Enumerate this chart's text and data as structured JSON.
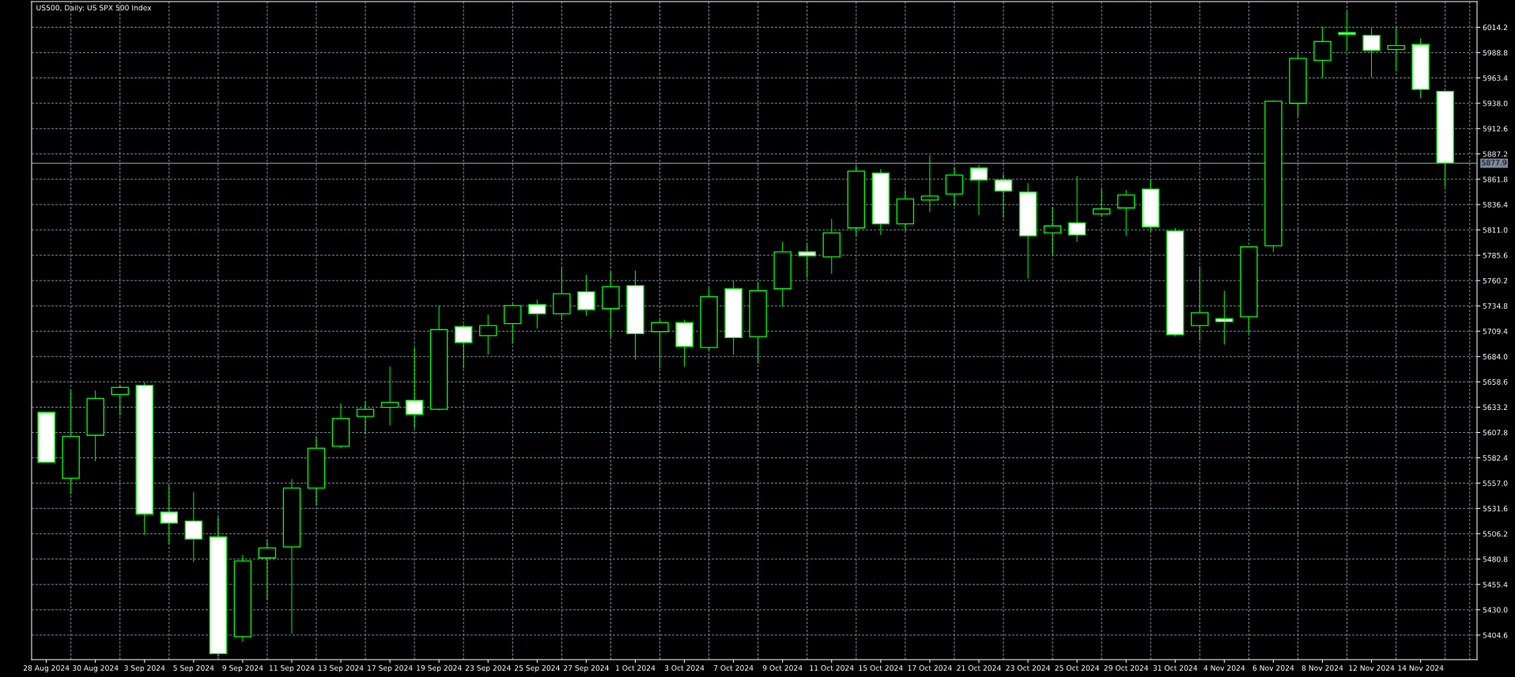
{
  "chart_data": {
    "type": "candlestick",
    "title": "US500, Daily: US SPX 500 Index",
    "categories": [
      "28 Aug 2024",
      null,
      "30 Aug 2024",
      null,
      "3 Sep 2024",
      null,
      "5 Sep 2024",
      null,
      "9 Sep 2024",
      null,
      "11 Sep 2024",
      null,
      "13 Sep 2024",
      null,
      "17 Sep 2024",
      null,
      "19 Sep 2024",
      null,
      "23 Sep 2024",
      null,
      "25 Sep 2024",
      null,
      "27 Sep 2024",
      null,
      "1 Oct 2024",
      null,
      "3 Oct 2024",
      null,
      "7 Oct 2024",
      null,
      "9 Oct 2024",
      null,
      "11 Oct 2024",
      null,
      "15 Oct 2024",
      null,
      "17 Oct 2024",
      null,
      "21 Oct 2024",
      null,
      "23 Oct 2024",
      null,
      "25 Oct 2024",
      null,
      "29 Oct 2024",
      null,
      "31 Oct 2024",
      null,
      "4 Nov 2024",
      null,
      "6 Nov 2024",
      null,
      "8 Nov 2024",
      null,
      "12 Nov 2024",
      null,
      "14 Nov 2024",
      null
    ],
    "ohlc": [
      [
        5628,
        5628,
        5578,
        5578
      ],
      [
        5562,
        5650,
        5546,
        5604
      ],
      [
        5605,
        5650,
        5579,
        5642
      ],
      [
        5646,
        5655,
        5625,
        5653
      ],
      [
        5655,
        5658,
        5505,
        5526
      ],
      [
        5528,
        5555,
        5496,
        5517
      ],
      [
        5519,
        5548,
        5478,
        5501
      ],
      [
        5503,
        5523,
        5383,
        5386
      ],
      [
        5403,
        5485,
        5398,
        5479
      ],
      [
        5482,
        5500,
        5440,
        5492
      ],
      [
        5493,
        5561,
        5406,
        5552
      ],
      [
        5552,
        5603,
        5535,
        5592
      ],
      [
        5594,
        5637,
        5592,
        5622
      ],
      [
        5624,
        5639,
        5606,
        5631
      ],
      [
        5633,
        5674,
        5615,
        5638
      ],
      [
        5640,
        5693,
        5612,
        5626
      ],
      [
        5631,
        5735,
        5630,
        5711
      ],
      [
        5714,
        5716,
        5672,
        5698
      ],
      [
        5705,
        5726,
        5686,
        5715
      ],
      [
        5717,
        5737,
        5697,
        5735
      ],
      [
        5736,
        5741,
        5712,
        5727
      ],
      [
        5727,
        5773,
        5721,
        5747
      ],
      [
        5749,
        5766,
        5725,
        5731
      ],
      [
        5732,
        5769,
        5703,
        5754
      ],
      [
        5755,
        5770,
        5681,
        5707
      ],
      [
        5709,
        5721,
        5672,
        5718
      ],
      [
        5718,
        5721,
        5674,
        5694
      ],
      [
        5693,
        5753,
        5690,
        5744
      ],
      [
        5752,
        5760,
        5686,
        5703
      ],
      [
        5704,
        5759,
        5677,
        5750
      ],
      [
        5752,
        5799,
        5734,
        5789
      ],
      [
        5789,
        5797,
        5763,
        5785
      ],
      [
        5784,
        5822,
        5767,
        5808
      ],
      [
        5813,
        5875,
        5805,
        5870
      ],
      [
        5868,
        5872,
        5806,
        5817
      ],
      [
        5817,
        5851,
        5810,
        5842
      ],
      [
        5841,
        5886,
        5829,
        5845
      ],
      [
        5847,
        5874,
        5835,
        5866
      ],
      [
        5873,
        5876,
        5826,
        5861
      ],
      [
        5861,
        5867,
        5823,
        5850
      ],
      [
        5849,
        5858,
        5762,
        5805
      ],
      [
        5808,
        5834,
        5786,
        5815
      ],
      [
        5818,
        5865,
        5799,
        5806
      ],
      [
        5827,
        5852,
        5825,
        5832
      ],
      [
        5833,
        5851,
        5805,
        5846
      ],
      [
        5852,
        5862,
        5809,
        5814
      ],
      [
        5810,
        5813,
        5704,
        5706
      ],
      [
        5715,
        5774,
        5700,
        5728
      ],
      [
        5722,
        5750,
        5696,
        5719
      ],
      [
        5724,
        5794,
        5707,
        5794
      ],
      [
        5795,
        5941,
        5789,
        5940
      ],
      [
        5938,
        5987,
        5925,
        5983
      ],
      [
        5981,
        6015,
        5964,
        6000
      ],
      [
        6009,
        6030,
        5990,
        6007
      ],
      [
        6006,
        6014,
        5964,
        5991
      ],
      [
        5992,
        6014,
        5970,
        5996
      ],
      [
        5997,
        6003,
        5943,
        5952
      ],
      [
        5950,
        5950,
        5854,
        5878
      ]
    ],
    "color": "#00ff00",
    "colors": [
      "#ffffff",
      "#000000",
      "#000000",
      "#000000",
      "#ffffff",
      "#ffffff",
      "#ffffff",
      "#ffffff",
      "#000000",
      "#000000",
      "#000000",
      "#000000",
      "#000000",
      "#000000",
      "#000000",
      "#ffffff",
      "#000000",
      "#ffffff",
      "#000000",
      "#000000",
      "#ffffff",
      "#000000",
      "#ffffff",
      "#000000",
      "#ffffff",
      "#000000",
      "#ffffff",
      "#000000",
      "#ffffff",
      "#000000",
      "#000000",
      "#ffffff",
      "#000000",
      "#000000",
      "#ffffff",
      "#000000",
      "#000000",
      "#000000",
      "#ffffff",
      "#ffffff",
      "#ffffff",
      "#000000",
      "#ffffff",
      "#000000",
      "#000000",
      "#ffffff",
      "#ffffff",
      "#000000",
      "#ffffff",
      "#000000",
      "#000000",
      "#000000",
      "#000000",
      "#ffffff",
      "#ffffff",
      "#000000",
      "#ffffff",
      "#ffffff"
    ],
    "ylim": [
      5380,
      6040
    ],
    "yticks": [
      5404.6,
      {
        "value": 5430,
        "label": "5430.0"
      },
      5455.4,
      5480.8,
      5506.2,
      5531.6,
      {
        "value": 5557,
        "label": "5557.0"
      },
      5582.4,
      5607.8,
      5633.2,
      5658.6,
      {
        "value": 5684,
        "label": "5684.0"
      },
      5709.4,
      5734.8,
      5760.2,
      5785.6,
      {
        "value": 5811,
        "label": "5811.0"
      },
      5836.4,
      5861.8,
      5887.2,
      5912.6,
      {
        "value": 5938,
        "label": "5938.0"
      },
      5963.4,
      5988.8,
      6014.2
    ],
    "grid": true,
    "ref_lines": [
      {
        "axis": "y",
        "value": 5877.9,
        "label": "5877.9",
        "color": "#778899"
      }
    ]
  }
}
